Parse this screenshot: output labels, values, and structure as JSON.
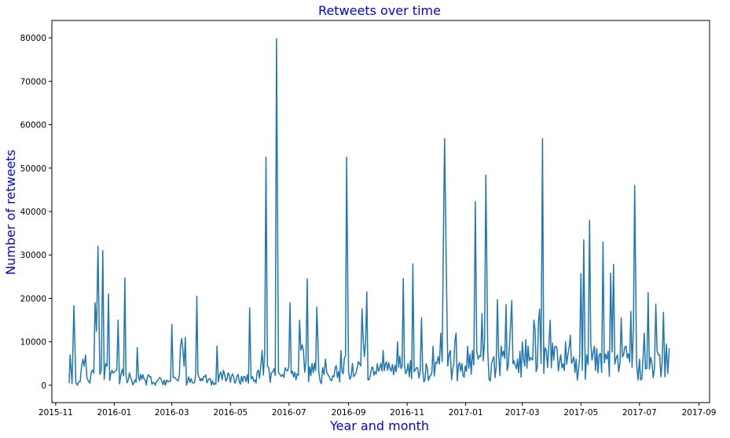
{
  "chart_data": {
    "type": "line",
    "title": "Retweets over time",
    "xlabel": "Year and month",
    "ylabel": "Number of retweets",
    "x_range": [
      "2015-10-28",
      "2017-09-12"
    ],
    "ylim": [
      -4000,
      84000
    ],
    "grid": false,
    "line_color": "#1f77b4",
    "x_ticks": [
      "2015-11",
      "2016-01",
      "2016-03",
      "2016-05",
      "2016-07",
      "2016-09",
      "2016-11",
      "2017-01",
      "2017-03",
      "2017-05",
      "2017-07",
      "2017-09"
    ],
    "y_ticks": [
      0,
      10000,
      20000,
      30000,
      40000,
      50000,
      60000,
      70000,
      80000
    ],
    "y_tick_labels": [
      "0",
      "10000",
      "20000",
      "30000",
      "40000",
      "50000",
      "60000",
      "70000",
      "80000"
    ],
    "series": [
      {
        "x": [
          "2015-11-15",
          "2015-11-16",
          "2015-11-18",
          "2015-11-20",
          "2015-11-22",
          "2015-11-25",
          "2015-11-28",
          "2015-12-02",
          "2015-12-05",
          "2015-12-08",
          "2015-12-12",
          "2015-12-15",
          "2015-12-17",
          "2015-12-20",
          "2015-12-23",
          "2015-12-26",
          "2016-01-01",
          "2016-01-05",
          "2016-01-08",
          "2016-01-12",
          "2016-01-18",
          "2016-01-25",
          "2016-02-01",
          "2016-02-08",
          "2016-02-15",
          "2016-02-22",
          "2016-03-01",
          "2016-03-05",
          "2016-03-10",
          "2016-03-15",
          "2016-03-21",
          "2016-03-27",
          "2016-04-03",
          "2016-04-10",
          "2016-04-17",
          "2016-04-25",
          "2016-05-02",
          "2016-05-09",
          "2016-05-16",
          "2016-05-21",
          "2016-05-24",
          "2016-05-30",
          "2016-06-03",
          "2016-06-07",
          "2016-06-10",
          "2016-06-14",
          "2016-06-18",
          "2016-06-20",
          "2016-06-23",
          "2016-06-27",
          "2016-07-02",
          "2016-07-07",
          "2016-07-12",
          "2016-07-16",
          "2016-07-20",
          "2016-07-25",
          "2016-07-30",
          "2016-08-01",
          "2016-08-05",
          "2016-08-08",
          "2016-08-12",
          "2016-08-18",
          "2016-08-24",
          "2016-08-30",
          "2016-09-01",
          "2016-09-05",
          "2016-09-10",
          "2016-09-15",
          "2016-09-20",
          "2016-09-25",
          "2016-10-01",
          "2016-10-07",
          "2016-10-14",
          "2016-10-22",
          "2016-10-28",
          "2016-11-02",
          "2016-11-07",
          "2016-11-12",
          "2016-11-16",
          "2016-11-22",
          "2016-11-28",
          "2016-12-02",
          "2016-12-06",
          "2016-12-09",
          "2016-12-10",
          "2016-12-12",
          "2016-12-16",
          "2016-12-22",
          "2016-12-28",
          "2017-01-03",
          "2017-01-08",
          "2017-01-11",
          "2017-01-14",
          "2017-01-18",
          "2017-01-22",
          "2017-01-24",
          "2017-01-28",
          "2017-02-03",
          "2017-02-07",
          "2017-02-12",
          "2017-02-18",
          "2017-02-24",
          "2017-03-01",
          "2017-03-07",
          "2017-03-13",
          "2017-03-19",
          "2017-03-22",
          "2017-03-26",
          "2017-03-30",
          "2017-04-05",
          "2017-04-10",
          "2017-04-15",
          "2017-04-20",
          "2017-04-26",
          "2017-05-01",
          "2017-05-04",
          "2017-05-07",
          "2017-05-10",
          "2017-05-15",
          "2017-05-20",
          "2017-05-24",
          "2017-05-28",
          "2017-06-01",
          "2017-06-04",
          "2017-06-08",
          "2017-06-12",
          "2017-06-17",
          "2017-06-22",
          "2017-06-26",
          "2017-06-28",
          "2017-07-01",
          "2017-07-06",
          "2017-07-10",
          "2017-07-14",
          "2017-07-18",
          "2017-07-22",
          "2017-07-26",
          "2017-07-29",
          "2017-08-01"
        ],
        "y": [
          500,
          7000,
          400,
          18300,
          600,
          800,
          4500,
          7000,
          1000,
          3000,
          19000,
          32000,
          2500,
          31000,
          5000,
          21000,
          3000,
          15000,
          2500,
          24700,
          1800,
          8700,
          1500,
          2000,
          1000,
          1200,
          14000,
          1500,
          9000,
          11000,
          1500,
          20500,
          2000,
          1500,
          9000,
          2500,
          2000,
          2500,
          2000,
          17800,
          2000,
          3500,
          8000,
          52500,
          4000,
          3000,
          79800,
          3000,
          2000,
          4000,
          19000,
          3000,
          15000,
          8000,
          24500,
          5000,
          18000,
          3000,
          4000,
          6000,
          2000,
          4000,
          8000,
          52500,
          3000,
          5000,
          4000,
          17600,
          21500,
          4000,
          5000,
          8000,
          4000,
          10000,
          24600,
          5000,
          27900,
          4000,
          15500,
          4000,
          9000,
          5000,
          12000,
          38000,
          56800,
          24000,
          8000,
          12000,
          5000,
          9000,
          8000,
          42300,
          6000,
          16500,
          48400,
          8000,
          5000,
          19700,
          9000,
          18600,
          19500,
          6000,
          10000,
          9000,
          15000,
          17500,
          56800,
          8000,
          15000,
          9000,
          7000,
          10000,
          11500,
          6000,
          25700,
          33500,
          7000,
          38000,
          9000,
          7000,
          33000,
          6000,
          25800,
          27800,
          7000,
          15500,
          9000,
          17000,
          46000,
          5000,
          6000,
          12000,
          21300,
          5000,
          18700,
          7000,
          16800,
          9500,
          8500
        ]
      }
    ]
  }
}
